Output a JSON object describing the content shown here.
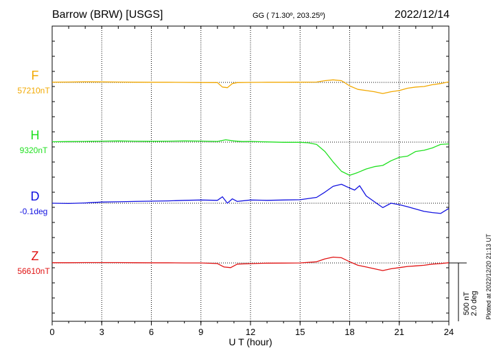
{
  "header": {
    "station": "Barrow (BRW)  [USGS]",
    "coords": "GG ( 71.30º, 203.25º)",
    "date": "2022/12/14"
  },
  "footer": {
    "plotted_note": "Plotted at 2022/12/20 21:13 UT"
  },
  "scale_bar": {
    "nt_label": "500 nT",
    "deg_label": "2.0 deg"
  },
  "chart_data": {
    "type": "line",
    "title": "Barrow (BRW)  [USGS]",
    "xlabel": "U T (hour)",
    "xlim": [
      0,
      24
    ],
    "xticks": [
      0,
      3,
      6,
      9,
      12,
      15,
      18,
      21,
      24
    ],
    "xtick_labels": [
      "0",
      "3",
      "6",
      "9",
      "12",
      "15",
      "18",
      "21",
      "24"
    ],
    "grid": "dotted vertical lines every 3 hours; dotted horizontal baseline per component",
    "scale": "500 nT per bar height (2.0 deg for D)",
    "series": [
      {
        "name": "F",
        "baseline_label": "57210nT",
        "color": "#f2a800",
        "baseline": 57210,
        "unit": "nT",
        "x": [
          0,
          1,
          2,
          3,
          4,
          5,
          6,
          7,
          8,
          9,
          10,
          10.3,
          10.6,
          10.9,
          11.2,
          12,
          13,
          14,
          15,
          16,
          16.5,
          17,
          17.5,
          18,
          18.5,
          19,
          19.5,
          20,
          20.5,
          21,
          21.5,
          22,
          22.5,
          23,
          23.5,
          24
        ],
        "values": [
          57212,
          57213,
          57215,
          57214,
          57213,
          57212,
          57211,
          57211,
          57210,
          57209,
          57208,
          57170,
          57165,
          57200,
          57208,
          57210,
          57211,
          57211,
          57212,
          57213,
          57225,
          57232,
          57225,
          57180,
          57150,
          57140,
          57130,
          57115,
          57130,
          57140,
          57160,
          57170,
          57175,
          57190,
          57200,
          57215
        ]
      },
      {
        "name": "H",
        "baseline_label": "9320nT",
        "color": "#1ee01e",
        "baseline": 9320,
        "unit": "nT",
        "x": [
          0,
          1,
          2,
          3,
          4,
          5,
          6,
          7,
          8,
          9,
          10,
          10.5,
          11,
          11.5,
          12,
          13,
          14,
          15,
          15.5,
          16,
          16.5,
          17,
          17.5,
          18,
          18.5,
          19,
          19.5,
          20,
          20.5,
          21,
          21.5,
          22,
          22.5,
          23,
          23.5,
          24
        ],
        "values": [
          9323,
          9325,
          9326,
          9328,
          9330,
          9328,
          9327,
          9328,
          9330,
          9329,
          9326,
          9340,
          9330,
          9325,
          9326,
          9322,
          9318,
          9318,
          9314,
          9300,
          9240,
          9150,
          9070,
          9035,
          9060,
          9090,
          9110,
          9120,
          9160,
          9190,
          9200,
          9240,
          9250,
          9270,
          9300,
          9305
        ]
      },
      {
        "name": "D",
        "baseline_label": "-0.1deg",
        "color": "#1010e0",
        "baseline": -0.1,
        "unit": "deg",
        "x": [
          0,
          1,
          2,
          3,
          4,
          5,
          6,
          7,
          8,
          9,
          10,
          10.3,
          10.6,
          10.9,
          11.2,
          12,
          13,
          14,
          15,
          16,
          16.5,
          17,
          17.5,
          18,
          18.3,
          18.6,
          19,
          19.5,
          20,
          20.5,
          21,
          21.5,
          22,
          22.5,
          23,
          23.5,
          24
        ],
        "values": [
          -0.1,
          -0.11,
          -0.09,
          -0.06,
          -0.05,
          -0.04,
          -0.03,
          -0.02,
          0,
          0.01,
          0,
          0.12,
          -0.1,
          0.05,
          -0.04,
          0.01,
          0.0,
          0.01,
          0.02,
          0.1,
          0.28,
          0.48,
          0.55,
          0.42,
          0.35,
          0.5,
          0.15,
          -0.05,
          -0.25,
          -0.1,
          -0.15,
          -0.22,
          -0.3,
          -0.38,
          -0.42,
          -0.45,
          -0.28
        ]
      },
      {
        "name": "Z",
        "baseline_label": "56610nT",
        "color": "#e01010",
        "baseline": 56610,
        "unit": "nT",
        "x": [
          0,
          1,
          2,
          3,
          4,
          5,
          6,
          7,
          8,
          9,
          10,
          10.4,
          10.8,
          11.2,
          12,
          13,
          14,
          15,
          16,
          16.5,
          17,
          17.5,
          18,
          18.5,
          19,
          19.5,
          20,
          20.5,
          21,
          21.5,
          22,
          22.5,
          23,
          23.5,
          24
        ],
        "values": [
          56612,
          56612,
          56613,
          56613,
          56613,
          56612,
          56611,
          56611,
          56610,
          56610,
          56605,
          56575,
          56570,
          56600,
          56604,
          56608,
          56609,
          56610,
          56620,
          56645,
          56660,
          56655,
          56620,
          56590,
          56575,
          56560,
          56545,
          56560,
          56570,
          56580,
          56585,
          56590,
          56600,
          56605,
          56612
        ]
      }
    ]
  }
}
